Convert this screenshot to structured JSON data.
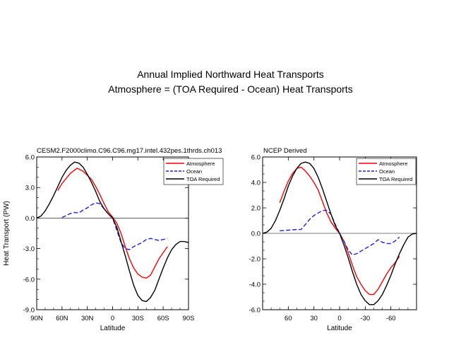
{
  "page": {
    "title_line1": "Annual Implied Northward Heat Transports",
    "title_line2": "Atmosphere = (TOA Required - Ocean) Heat Transports"
  },
  "chart_data": [
    {
      "type": "line",
      "title": "CESM2.F2000climo.C96.C96.mg17.intel.432pes.1thrds.ch013",
      "xlabel": "Latitude",
      "ylabel": "Heat Transport (PW)",
      "xlim": [
        90,
        -90
      ],
      "ylim": [
        -9.0,
        6.0
      ],
      "xticks": [
        90,
        60,
        30,
        0,
        -30,
        -60,
        -90
      ],
      "xtick_labels": [
        "90N",
        "60N",
        "30N",
        "0",
        "30S",
        "60S",
        "90S"
      ],
      "yticks": [
        6.0,
        3.0,
        0.0,
        -3.0,
        -6.0,
        -9.0
      ],
      "ytick_labels": [
        "6.0",
        "3.0",
        "0.0",
        "-3.0",
        "-6.0",
        "-9.0"
      ],
      "legend": "top-right",
      "series": [
        {
          "name": "Atmosphere",
          "color": "#ff0000",
          "dash": "solid",
          "x": [
            65,
            60,
            50,
            42,
            35,
            30,
            25,
            20,
            15,
            10,
            5,
            0,
            -5,
            -10,
            -15,
            -20,
            -25,
            -30,
            -35,
            -40,
            -45,
            -50,
            -55,
            -60,
            -65
          ],
          "y": [
            2.7,
            3.4,
            4.4,
            4.9,
            4.6,
            4.2,
            3.8,
            3.1,
            2.3,
            1.4,
            0.6,
            0.1,
            -0.5,
            -1.5,
            -2.8,
            -4.0,
            -4.9,
            -5.5,
            -5.8,
            -5.9,
            -5.6,
            -4.8,
            -4.0,
            -3.4,
            -2.8
          ]
        },
        {
          "name": "Ocean",
          "color": "#1f1fe0",
          "dash": "dashed",
          "x": [
            60,
            55,
            50,
            45,
            40,
            35,
            30,
            25,
            20,
            15,
            10,
            5,
            0,
            -5,
            -10,
            -15,
            -20,
            -25,
            -30,
            -35,
            -40,
            -45,
            -50,
            -55,
            -60,
            -65
          ],
          "y": [
            0.05,
            0.25,
            0.45,
            0.55,
            0.5,
            0.8,
            1.0,
            1.3,
            1.5,
            1.4,
            0.9,
            0.4,
            0.0,
            -1.2,
            -2.4,
            -3.0,
            -3.1,
            -2.8,
            -2.6,
            -2.4,
            -2.1,
            -2.0,
            -2.1,
            -2.2,
            -2.1,
            -2.0
          ]
        },
        {
          "name": "TOA Required",
          "color": "#000000",
          "dash": "solid",
          "x": [
            90,
            85,
            80,
            75,
            70,
            65,
            60,
            55,
            50,
            45,
            40,
            35,
            30,
            25,
            20,
            15,
            10,
            5,
            0,
            -5,
            -10,
            -15,
            -20,
            -25,
            -30,
            -35,
            -40,
            -45,
            -50,
            -55,
            -60,
            -65,
            -70,
            -75,
            -80,
            -85,
            -90
          ],
          "y": [
            0.0,
            0.2,
            0.7,
            1.4,
            2.2,
            3.1,
            4.0,
            4.7,
            5.2,
            5.5,
            5.4,
            5.0,
            4.3,
            3.5,
            2.6,
            1.6,
            0.9,
            0.4,
            0.0,
            -0.9,
            -2.3,
            -3.7,
            -5.2,
            -6.6,
            -7.6,
            -8.1,
            -8.2,
            -7.8,
            -7.1,
            -6.0,
            -4.9,
            -3.9,
            -3.1,
            -2.6,
            -2.3,
            -2.3,
            -2.4
          ]
        }
      ]
    },
    {
      "type": "line",
      "title": "NCEP Derived",
      "xlabel": "Latitude",
      "ylabel": "",
      "xlim": [
        90,
        -90
      ],
      "ylim": [
        -6.0,
        6.0
      ],
      "xticks": [
        60,
        30,
        0,
        -30,
        -60
      ],
      "xtick_labels": [
        "60",
        "30",
        "0",
        "-30",
        "-60"
      ],
      "yticks": [
        6.0,
        4.0,
        2.0,
        0.0,
        -2.0,
        -4.0,
        -6.0
      ],
      "ytick_labels": [
        "6.0",
        "4.0",
        "2.0",
        "0.0",
        "-2.0",
        "-4.0",
        "-6.0"
      ],
      "legend": "top-right",
      "series": [
        {
          "name": "Atmosphere",
          "color": "#ff0000",
          "dash": "solid",
          "x": [
            70,
            65,
            60,
            55,
            50,
            45,
            40,
            35,
            30,
            25,
            20,
            15,
            10,
            5,
            0,
            -5,
            -10,
            -15,
            -20,
            -25,
            -30,
            -35,
            -40,
            -45,
            -50,
            -55,
            -60,
            -65,
            -70
          ],
          "y": [
            2.4,
            3.3,
            4.1,
            4.7,
            5.1,
            5.2,
            4.9,
            4.5,
            4.0,
            3.4,
            2.5,
            1.6,
            0.9,
            0.4,
            0.0,
            -0.6,
            -1.5,
            -2.5,
            -3.4,
            -4.0,
            -4.5,
            -4.8,
            -4.8,
            -4.4,
            -3.8,
            -3.2,
            -2.7,
            -2.3,
            -1.8
          ]
        },
        {
          "name": "Ocean",
          "color": "#1f1fe0",
          "dash": "dashed",
          "x": [
            70,
            60,
            50,
            45,
            40,
            35,
            30,
            25,
            20,
            15,
            10,
            5,
            0,
            -5,
            -10,
            -15,
            -20,
            -25,
            -30,
            -35,
            -40,
            -45,
            -50,
            -55,
            -60,
            -65,
            -70
          ],
          "y": [
            0.2,
            0.25,
            0.3,
            0.3,
            0.7,
            1.1,
            1.4,
            1.6,
            1.8,
            1.8,
            1.5,
            0.7,
            0.0,
            -0.6,
            -1.3,
            -1.7,
            -1.6,
            -1.4,
            -1.2,
            -1.0,
            -0.8,
            -0.5,
            -0.7,
            -0.8,
            -0.8,
            -0.6,
            -0.3
          ]
        },
        {
          "name": "TOA Required",
          "color": "#000000",
          "dash": "solid",
          "x": [
            90,
            85,
            80,
            75,
            70,
            65,
            60,
            55,
            50,
            45,
            40,
            35,
            30,
            25,
            20,
            15,
            10,
            5,
            0,
            -5,
            -10,
            -15,
            -20,
            -25,
            -30,
            -35,
            -40,
            -45,
            -50,
            -55,
            -60,
            -65,
            -70,
            -75,
            -80,
            -85,
            -90
          ],
          "y": [
            0.0,
            0.1,
            0.4,
            1.0,
            1.8,
            2.7,
            3.7,
            4.5,
            5.1,
            5.5,
            5.6,
            5.5,
            5.1,
            4.4,
            3.5,
            2.5,
            1.5,
            0.6,
            0.0,
            -0.9,
            -1.9,
            -3.0,
            -4.0,
            -4.8,
            -5.3,
            -5.6,
            -5.6,
            -5.3,
            -4.8,
            -4.1,
            -3.3,
            -2.4,
            -1.6,
            -0.9,
            -0.3,
            -0.05,
            0.0
          ]
        }
      ]
    }
  ]
}
